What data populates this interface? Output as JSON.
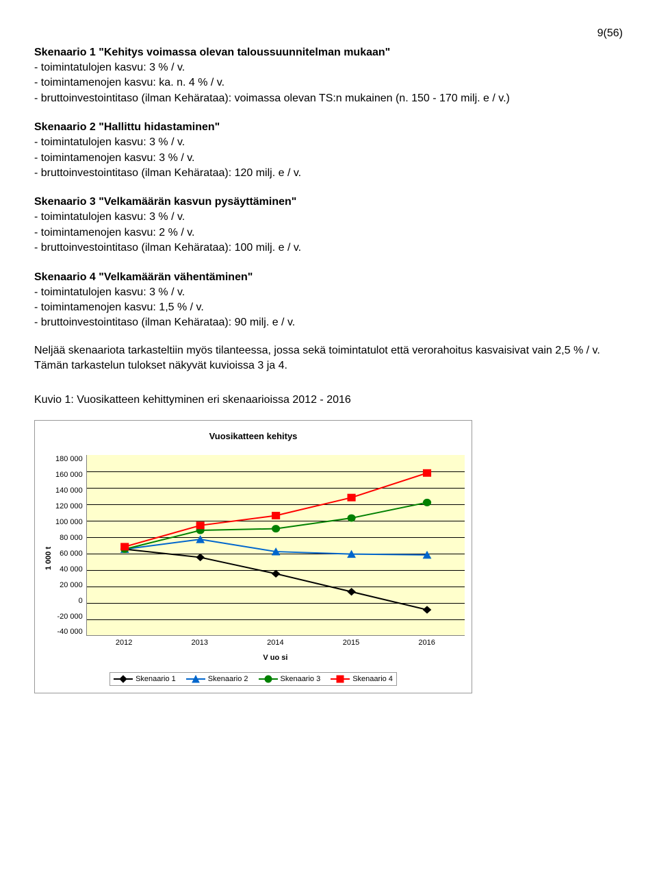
{
  "page_number": "9(56)",
  "scenario1": {
    "title": "Skenaario 1 \"Kehitys voimassa olevan taloussuunnitelman mukaan\"",
    "line1": "- toimintatulojen kasvu: 3 % / v.",
    "line2": "- toimintamenojen kasvu: ka. n. 4 % / v.",
    "line3": "- bruttoinvestointitaso (ilman Kehärataa): voimassa olevan TS:n mukainen (n. 150 - 170 milj. e / v.)"
  },
  "scenario2": {
    "title": "Skenaario 2 \"Hallittu hidastaminen\"",
    "line1": "- toimintatulojen kasvu: 3 % / v.",
    "line2": "- toimintamenojen kasvu: 3 % / v.",
    "line3": "- bruttoinvestointitaso (ilman Kehärataa): 120 milj. e / v."
  },
  "scenario3": {
    "title": "Skenaario 3 \"Velkamäärän kasvun pysäyttäminen\"",
    "line1": "- toimintatulojen kasvu: 3 % / v.",
    "line2": "- toimintamenojen kasvu: 2 % / v.",
    "line3": "- bruttoinvestointitaso (ilman Kehärataa): 100 milj. e / v."
  },
  "scenario4": {
    "title": "Skenaario 4 \"Velkamäärän vähentäminen\"",
    "line1": "- toimintatulojen kasvu: 3 % / v.",
    "line2": "- toimintamenojen kasvu: 1,5 % / v.",
    "line3": "- bruttoinvestointitaso (ilman Kehärataa): 90 milj. e / v."
  },
  "para1": "Neljää skenaariota tarkasteltiin myös tilanteessa, jossa sekä toimintatulot että verorahoitus kasvaisivat vain 2,5 % / v. Tämän tarkastelun tulokset näkyvät kuvioissa 3 ja 4.",
  "chart_caption": "Kuvio 1: Vuosikatteen kehittyminen eri skenaarioissa 2012 - 2016",
  "chart": {
    "title": "Vuosikatteen kehitys",
    "ylabel": "1 000 t",
    "xlabel": "V uo si",
    "y_ticks": [
      "180 000",
      "160 000",
      "140 000",
      "120 000",
      "100 000",
      "80 000",
      "60 000",
      "40 000",
      "20 000",
      "0",
      "-20 000",
      "-40 000"
    ],
    "y_min": -40000,
    "y_max": 180000,
    "x_ticks": [
      "2012",
      "2013",
      "2014",
      "2015",
      "2016"
    ],
    "plot_bg": "#ffffcc",
    "grid_color": "#000000",
    "series": [
      {
        "name": "Skenaario 1",
        "color": "#000000",
        "marker": "diamond",
        "values": [
          65000,
          55000,
          35000,
          13000,
          -9000
        ]
      },
      {
        "name": "Skenaario 2",
        "color": "#0066cc",
        "marker": "triangle",
        "values": [
          65000,
          77000,
          62000,
          59000,
          58000
        ]
      },
      {
        "name": "Skenaario 3",
        "color": "#008000",
        "marker": "circle",
        "values": [
          65000,
          88000,
          90000,
          103000,
          122000
        ]
      },
      {
        "name": "Skenaario 4",
        "color": "#ff0000",
        "marker": "square",
        "values": [
          68000,
          94000,
          106000,
          128000,
          158000
        ]
      }
    ],
    "legend": [
      "Skenaario 1",
      "Skenaario 2",
      "Skenaario 3",
      "Skenaario 4"
    ]
  }
}
